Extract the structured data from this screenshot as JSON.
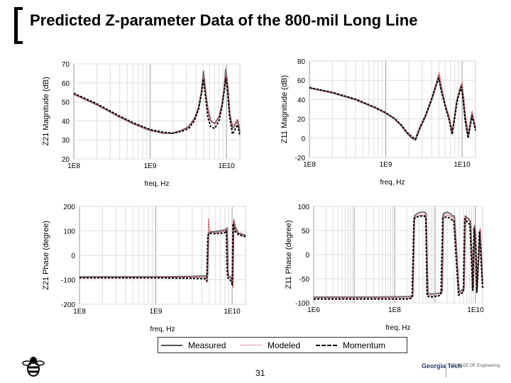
{
  "title": "Predicted Z-parameter Data of the 800-mil Long Line",
  "page_number": "31",
  "legend": [
    {
      "label": "Measured",
      "color": "#555555",
      "style": "solid"
    },
    {
      "label": "Modeled",
      "color": "#cc3344",
      "style": "dotted"
    },
    {
      "label": "Momentum",
      "color": "#000000",
      "style": "dashed"
    }
  ],
  "logo_right": {
    "institute": "Georgia Tech",
    "dept": "COLLEGE OF Engineering"
  },
  "chart_data": [
    {
      "type": "line",
      "ylabel": "Z21 Magnitude (dB)",
      "xlabel": "freq, Hz",
      "xscale": "log",
      "xlim": [
        100000000.0,
        15000000000.0
      ],
      "ylim": [
        20,
        70
      ],
      "xticks": [
        {
          "v": 100000000.0,
          "label": "1E8"
        },
        {
          "v": 1000000000.0,
          "label": "1E9"
        },
        {
          "v": 10000000000.0,
          "label": "1E10"
        }
      ],
      "yticks": [
        20,
        30,
        40,
        50,
        60,
        70
      ],
      "series": [
        {
          "name": "Measured",
          "x": [
            100000000.0,
            200000000.0,
            400000000.0,
            600000000.0,
            1000000000.0,
            1500000000.0,
            2000000000.0,
            2600000000.0,
            3200000000.0,
            3800000000.0,
            4300000000.0,
            4700000000.0,
            5000000000.0,
            5300000000.0,
            5700000000.0,
            6200000000.0,
            7000000000.0,
            8000000000.0,
            8700000000.0,
            9300000000.0,
            9800000000.0,
            10300000000.0,
            11000000000.0,
            12000000000.0,
            14000000000.0,
            15000000000.0
          ],
          "y": [
            54,
            48.5,
            42,
            38.5,
            35,
            33.5,
            33.5,
            35,
            37,
            41,
            47,
            55,
            66,
            56,
            46,
            40,
            38.5,
            42,
            48,
            56,
            67,
            60,
            44,
            36,
            40,
            34
          ]
        },
        {
          "name": "Modeled",
          "x": [
            100000000.0,
            200000000.0,
            400000000.0,
            600000000.0,
            1000000000.0,
            1500000000.0,
            2000000000.0,
            2600000000.0,
            3200000000.0,
            3800000000.0,
            4300000000.0,
            4700000000.0,
            5100000000.0,
            5400000000.0,
            5800000000.0,
            6300000000.0,
            7000000000.0,
            8000000000.0,
            8700000000.0,
            9300000000.0,
            9900000000.0,
            10500000000.0,
            11200000000.0,
            12200000000.0,
            14000000000.0,
            15000000000.0
          ],
          "y": [
            54,
            48.5,
            42,
            38.5,
            35,
            33.5,
            33.5,
            35,
            37,
            41,
            47,
            55,
            63,
            54,
            45,
            40,
            38.5,
            42,
            49,
            57,
            64,
            58,
            43,
            37,
            41,
            36
          ]
        },
        {
          "name": "Momentum",
          "x": [
            100000000.0,
            200000000.0,
            400000000.0,
            600000000.0,
            1000000000.0,
            1500000000.0,
            2000000000.0,
            2600000000.0,
            3200000000.0,
            3800000000.0,
            4300000000.0,
            4700000000.0,
            5000000000.0,
            5300000000.0,
            5700000000.0,
            6200000000.0,
            7000000000.0,
            8000000000.0,
            8700000000.0,
            9300000000.0,
            9800000000.0,
            10300000000.0,
            11000000000.0,
            12000000000.0,
            14000000000.0,
            15000000000.0
          ],
          "y": [
            54.5,
            49,
            42.5,
            39,
            35.5,
            34,
            33.5,
            34.5,
            36,
            40,
            46,
            54,
            62,
            53,
            42,
            37,
            36,
            40,
            47,
            55,
            62,
            57,
            42,
            33,
            38,
            32
          ]
        }
      ]
    },
    {
      "type": "line",
      "ylabel": "Z11 Magnitude (dB)",
      "xlabel": "freq, Hz",
      "xscale": "log",
      "xlim": [
        100000000.0,
        15000000000.0
      ],
      "ylim": [
        -20,
        80
      ],
      "xticks": [
        {
          "v": 100000000.0,
          "label": "1E8"
        },
        {
          "v": 1000000000.0,
          "label": "1E9"
        },
        {
          "v": 10000000000.0,
          "label": "1E10"
        }
      ],
      "yticks": [
        -20,
        0,
        20,
        40,
        60,
        80
      ],
      "series": [
        {
          "name": "Measured",
          "x": [
            100000000.0,
            200000000.0,
            400000000.0,
            700000000.0,
            1000000000.0,
            1300000000.0,
            1600000000.0,
            1900000000.0,
            2200000000.0,
            2450000000.0,
            2800000000.0,
            3300000000.0,
            4000000000.0,
            4600000000.0,
            4950000000.0,
            5300000000.0,
            6000000000.0,
            6800000000.0,
            7400000000.0,
            7900000000.0,
            8600000000.0,
            9300000000.0,
            9800000000.0,
            10300000000.0,
            11000000000.0,
            12000000000.0,
            13500000000.0,
            15000000000.0
          ],
          "y": [
            52,
            47,
            40,
            32,
            26,
            20,
            13,
            5,
            0,
            -2,
            10,
            22,
            40,
            55,
            65,
            52,
            35,
            20,
            5,
            20,
            40,
            50,
            55,
            42,
            20,
            2,
            25,
            10
          ]
        },
        {
          "name": "Modeled",
          "x": [
            100000000.0,
            200000000.0,
            400000000.0,
            700000000.0,
            1000000000.0,
            1300000000.0,
            1600000000.0,
            1900000000.0,
            2200000000.0,
            2450000000.0,
            2800000000.0,
            3300000000.0,
            4000000000.0,
            4600000000.0,
            5000000000.0,
            5400000000.0,
            6000000000.0,
            6800000000.0,
            7400000000.0,
            8000000000.0,
            8700000000.0,
            9400000000.0,
            10000000000.0,
            10500000000.0,
            11200000000.0,
            12200000000.0,
            13500000000.0,
            15000000000.0
          ],
          "y": [
            52,
            47,
            40,
            32,
            26,
            20,
            13,
            6,
            2,
            0,
            12,
            24,
            42,
            58,
            68,
            54,
            36,
            22,
            8,
            22,
            42,
            52,
            58,
            45,
            22,
            5,
            28,
            12
          ]
        },
        {
          "name": "Momentum",
          "x": [
            100000000.0,
            200000000.0,
            400000000.0,
            700000000.0,
            1000000000.0,
            1300000000.0,
            1600000000.0,
            1900000000.0,
            2200000000.0,
            2450000000.0,
            2800000000.0,
            3300000000.0,
            4000000000.0,
            4600000000.0,
            4950000000.0,
            5300000000.0,
            6000000000.0,
            6800000000.0,
            7400000000.0,
            7900000000.0,
            8600000000.0,
            9300000000.0,
            9800000000.0,
            10300000000.0,
            11000000000.0,
            12000000000.0,
            13500000000.0,
            15000000000.0
          ],
          "y": [
            52.5,
            47.5,
            40.5,
            32.5,
            26.5,
            20.5,
            13.5,
            6,
            1,
            -1,
            11,
            23,
            41,
            56,
            62,
            50,
            33,
            18,
            4,
            18,
            38,
            48,
            53,
            40,
            18,
            0,
            23,
            8
          ]
        }
      ]
    },
    {
      "type": "line",
      "ylabel": "Z21 Phase (degree)",
      "xlabel": "freq, Hz",
      "xscale": "log",
      "xlim": [
        100000000.0,
        15000000000.0
      ],
      "ylim": [
        -200,
        200
      ],
      "xticks": [
        {
          "v": 100000000.0,
          "label": "1E8"
        },
        {
          "v": 1000000000.0,
          "label": "1E9"
        },
        {
          "v": 10000000000.0,
          "label": "1E10"
        }
      ],
      "yticks": [
        -200,
        -100,
        0,
        100,
        200
      ],
      "series": [
        {
          "name": "Measured",
          "x": [
            100000000.0,
            1000000000.0,
            3000000000.0,
            4600000000.0,
            4750000000.0,
            4900000000.0,
            5100000000.0,
            6000000000.0,
            7000000000.0,
            8200000000.0,
            8600000000.0,
            8800000000.0,
            9000000000.0,
            9500000000.0,
            9900000000.0,
            10200000000.0,
            10500000000.0,
            11000000000.0,
            12000000000.0,
            13500000000.0,
            15000000000.0
          ],
          "y": [
            -88,
            -88,
            -86,
            -84,
            -80,
            88,
            95,
            97,
            100,
            105,
            112,
            -60,
            -85,
            -88,
            -92,
            -100,
            140,
            110,
            90,
            85,
            80
          ]
        },
        {
          "name": "Modeled",
          "x": [
            100000000.0,
            1000000000.0,
            3000000000.0,
            4600000000.0,
            4750000000.0,
            4900000000.0,
            5100000000.0,
            6000000000.0,
            7000000000.0,
            8200000000.0,
            8500000000.0,
            8700000000.0,
            8900000000.0,
            9500000000.0,
            9900000000.0,
            10300000000.0,
            10600000000.0,
            11000000000.0,
            12000000000.0,
            13500000000.0,
            15000000000.0
          ],
          "y": [
            -90,
            -90,
            -90,
            -90,
            -110,
            150,
            100,
            92,
            95,
            100,
            105,
            -55,
            -90,
            -92,
            -98,
            -130,
            150,
            120,
            95,
            88,
            84
          ]
        },
        {
          "name": "Momentum",
          "x": [
            100000000.0,
            1000000000.0,
            3000000000.0,
            4500000000.0,
            4650000000.0,
            4800000000.0,
            5000000000.0,
            6000000000.0,
            7000000000.0,
            8000000000.0,
            8400000000.0,
            8600000000.0,
            8800000000.0,
            9400000000.0,
            9800000000.0,
            10000000000.0,
            10300000000.0,
            10800000000.0,
            12000000000.0,
            13500000000.0,
            15000000000.0
          ],
          "y": [
            -92,
            -92,
            -94,
            -96,
            -105,
            80,
            90,
            88,
            90,
            92,
            100,
            -70,
            -92,
            -98,
            -110,
            -120,
            130,
            100,
            85,
            80,
            76
          ]
        }
      ]
    },
    {
      "type": "line",
      "ylabel": "Z11 Phase (degree)",
      "xlabel": "freq, Hz",
      "xscale": "log",
      "xlim": [
        1000000.0,
        15000000000.0
      ],
      "ylim": [
        -100,
        100
      ],
      "xticks": [
        {
          "v": 1000000.0,
          "label": "1E6"
        },
        {
          "v": 100000000.0,
          "label": "1E8"
        },
        {
          "v": 10000000000.0,
          "label": "1E10"
        }
      ],
      "yticks": [
        -100,
        -50,
        0,
        50,
        100
      ],
      "series": [
        {
          "name": "Measured",
          "x": [
            1000000.0,
            30000000.0,
            230000000.0,
            280000000.0,
            310000000.0,
            360000000.0,
            450000000.0,
            550000000.0,
            600000000.0,
            660000000.0,
            830000000.0,
            1300000000.0,
            1500000000.0,
            1600000000.0,
            2000000000.0,
            2400000000.0,
            2700000000.0,
            3000000000.0,
            3900000000.0,
            5200000000.0,
            5600000000.0,
            6000000000.0,
            7500000000.0,
            8800000000.0,
            9500000000.0,
            10000000000.0,
            11000000000.0,
            13000000000.0,
            15000000000.0
          ],
          "y": [
            -88,
            -88,
            -87,
            -85,
            80,
            85,
            88,
            88,
            85,
            -80,
            -82,
            -80,
            -75,
            85,
            88,
            85,
            80,
            80,
            -78,
            -70,
            80,
            78,
            70,
            -68,
            60,
            40,
            -70,
            50,
            -60
          ]
        },
        {
          "name": "Modeled",
          "x": [
            1000000.0,
            30000000.0,
            230000000.0,
            280000000.0,
            310000000.0,
            360000000.0,
            450000000.0,
            550000000.0,
            600000000.0,
            660000000.0,
            830000000.0,
            1300000000.0,
            1500000000.0,
            1600000000.0,
            2000000000.0,
            2400000000.0,
            2700000000.0,
            3000000000.0,
            3900000000.0,
            5200000000.0,
            5600000000.0,
            6000000000.0,
            7500000000.0,
            8800000000.0,
            9500000000.0,
            10000000000.0,
            11000000000.0,
            13000000000.0,
            15000000000.0
          ],
          "y": [
            -90,
            -90,
            -90,
            -88,
            76,
            80,
            82,
            82,
            80,
            -84,
            -86,
            -84,
            -78,
            80,
            82,
            80,
            76,
            76,
            -82,
            -74,
            78,
            74,
            66,
            -72,
            58,
            42,
            -74,
            56,
            -66
          ]
        },
        {
          "name": "Momentum",
          "x": [
            1000000.0,
            30000000.0,
            220000000.0,
            270000000.0,
            300000000.0,
            350000000.0,
            440000000.0,
            540000000.0,
            590000000.0,
            640000000.0,
            800000000.0,
            1200000000.0,
            1400000000.0,
            1550000000.0,
            1900000000.0,
            2300000000.0,
            2600000000.0,
            2900000000.0,
            3800000000.0,
            5000000000.0,
            5400000000.0,
            5800000000.0,
            7300000000.0,
            8500000000.0,
            9200000000.0,
            9800000000.0,
            10800000000.0,
            12500000000.0,
            15000000000.0
          ],
          "y": [
            -92,
            -92,
            -92,
            -90,
            74,
            78,
            80,
            80,
            76,
            -86,
            -88,
            -86,
            -82,
            76,
            78,
            76,
            72,
            72,
            -84,
            -78,
            74,
            70,
            62,
            -74,
            54,
            36,
            -78,
            48,
            -70
          ]
        }
      ]
    }
  ]
}
